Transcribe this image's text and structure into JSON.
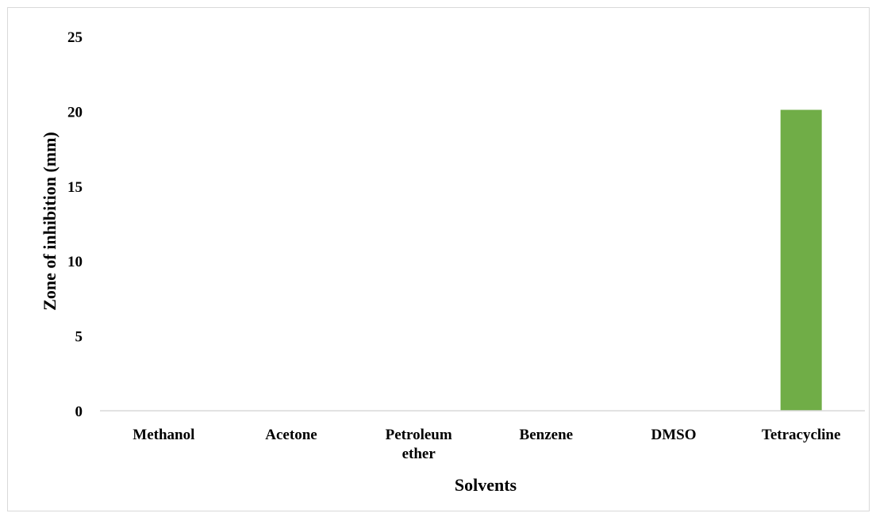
{
  "chart_data": {
    "type": "bar",
    "title": "",
    "xlabel": "Solvents",
    "ylabel": "Zone of inhibition (mm)",
    "categories": [
      [
        "Methanol"
      ],
      [
        "Acetone"
      ],
      [
        "Petroleum",
        "ether"
      ],
      [
        "Benzene"
      ],
      [
        "DMSO"
      ],
      [
        "Tetracycline"
      ]
    ],
    "values": [
      0,
      0,
      0,
      0,
      0,
      20.1
    ],
    "ylim": [
      0,
      25
    ],
    "yticks": [
      "0",
      "5",
      "10",
      "15",
      "20",
      "25"
    ],
    "bar_color": "#70ad47",
    "grid": false,
    "legend": "none"
  }
}
